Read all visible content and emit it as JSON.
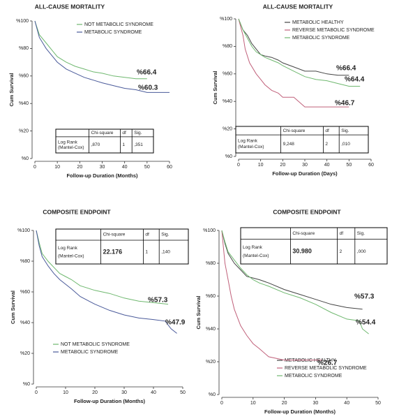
{
  "chart_data": [
    {
      "type": "line",
      "title": "ALL-CAUSE MORTALITY",
      "x_label": "Follow-up Duration (Months)",
      "y_label": "Cum Survival",
      "xlim": [
        0,
        60
      ],
      "xticks": [
        0,
        10,
        20,
        30,
        40,
        50,
        60
      ],
      "ylim": [
        0,
        100
      ],
      "yticks": [
        {
          "value": 0,
          "label": "%0"
        },
        {
          "value": 20,
          "label": "%20"
        },
        {
          "value": 40,
          "label": "%40"
        },
        {
          "value": 60,
          "label": "%60"
        },
        {
          "value": 80,
          "label": "%80"
        },
        {
          "value": 100,
          "label": "%100"
        }
      ],
      "series": [
        {
          "name": "NOT METABOLIC SYNDROME",
          "color": "#6fb86f",
          "x": [
            0,
            2,
            5,
            8,
            10,
            14,
            18,
            22,
            26,
            30,
            35,
            40,
            45,
            50
          ],
          "values": [
            100,
            90,
            84,
            78,
            74,
            70,
            67,
            65,
            63,
            62,
            60,
            59,
            58,
            58
          ]
        },
        {
          "name": "METABOLIC SYNDROME",
          "color": "#4a5a9a",
          "x": [
            0,
            2,
            5,
            8,
            10,
            14,
            18,
            22,
            26,
            30,
            35,
            40,
            45,
            50,
            55,
            60
          ],
          "values": [
            100,
            88,
            80,
            74,
            70,
            65,
            62,
            59,
            57,
            55,
            53,
            51,
            50,
            48,
            48,
            48
          ]
        }
      ],
      "annotations": [
        "%66.4",
        "%60.3"
      ],
      "table": {
        "header": [
          "Chi-square",
          "df",
          "Sig."
        ],
        "row_label": [
          "Log Rank",
          "(Mantel-Cox)"
        ],
        "row": [
          ",870",
          "1",
          ",351"
        ]
      }
    },
    {
      "type": "line",
      "title": "ALL-CAUSE MORTALITY",
      "x_label": "Follow-up Duration (Days)",
      "y_label": "Cum Survival",
      "xlim": [
        0,
        60
      ],
      "xticks": [
        0,
        10,
        20,
        30,
        40,
        50,
        60
      ],
      "ylim": [
        0,
        100
      ],
      "yticks": [
        {
          "value": 0,
          "label": "%0"
        },
        {
          "value": 20,
          "label": "%20"
        },
        {
          "value": 40,
          "label": "%40"
        },
        {
          "value": 60,
          "label": "%60"
        },
        {
          "value": 80,
          "label": "%80"
        },
        {
          "value": 100,
          "label": "%100"
        }
      ],
      "series": [
        {
          "name": "METABOLIC HEALTHY",
          "color": "#444444",
          "x": [
            0,
            2,
            4,
            6,
            8,
            10,
            12,
            15,
            18,
            20,
            25,
            30,
            35,
            40,
            45,
            50
          ],
          "values": [
            100,
            92,
            88,
            82,
            78,
            74,
            73,
            72,
            70,
            68,
            65,
            62,
            62,
            60,
            59,
            59
          ]
        },
        {
          "name": "REVERSE METABOLIC SYNDROME",
          "color": "#c0607a",
          "x": [
            0,
            2,
            3,
            5,
            8,
            10,
            12,
            15,
            18,
            20,
            25,
            30,
            35,
            40,
            45,
            50
          ],
          "values": [
            100,
            88,
            78,
            68,
            60,
            56,
            52,
            48,
            46,
            43,
            43,
            36,
            36,
            36,
            36,
            36
          ]
        },
        {
          "name": "METABOLIC SYNDROME",
          "color": "#6fb86f",
          "x": [
            0,
            2,
            4,
            6,
            8,
            10,
            12,
            15,
            18,
            20,
            25,
            30,
            35,
            40,
            45,
            50,
            55
          ],
          "values": [
            100,
            92,
            86,
            80,
            76,
            74,
            72,
            70,
            68,
            66,
            62,
            58,
            56,
            55,
            53,
            51,
            51
          ]
        }
      ],
      "annotations": [
        "%66.4",
        "%64.4",
        "%46.7"
      ],
      "table": {
        "header": [
          "Chi-square",
          "df",
          "Sig."
        ],
        "row_label": [
          "Log Rank",
          "(Mantel-Cox)"
        ],
        "row": [
          "9,248",
          "2",
          ",010"
        ]
      }
    },
    {
      "type": "line",
      "title": "COMPOSITE ENDPOINT",
      "x_label": "Follow-up Duration (Months)",
      "y_label": "Cum Survival",
      "xlim": [
        0,
        50
      ],
      "xticks": [
        0,
        10,
        20,
        30,
        40,
        50
      ],
      "ylim": [
        0,
        100
      ],
      "yticks": [
        {
          "value": 0,
          "label": "%0"
        },
        {
          "value": 20,
          "label": "%20"
        },
        {
          "value": 40,
          "label": "%40"
        },
        {
          "value": 60,
          "label": "%60"
        },
        {
          "value": 80,
          "label": "%80"
        },
        {
          "value": 100,
          "label": "%100"
        }
      ],
      "series": [
        {
          "name": "NOT METABOLIC SYNDROME",
          "color": "#6fb86f",
          "x": [
            0,
            1,
            2,
            4,
            6,
            8,
            10,
            12,
            15,
            20,
            25,
            30,
            35,
            40,
            45
          ],
          "values": [
            100,
            92,
            85,
            80,
            76,
            72,
            70,
            68,
            64,
            61,
            59,
            56,
            54,
            53,
            52
          ]
        },
        {
          "name": "METABOLIC SYNDROME",
          "color": "#4a5a9a",
          "x": [
            0,
            1,
            2,
            4,
            6,
            8,
            10,
            12,
            15,
            20,
            25,
            30,
            35,
            40,
            44,
            46,
            48
          ],
          "values": [
            100,
            90,
            83,
            77,
            72,
            68,
            65,
            62,
            57,
            52,
            48,
            45,
            43,
            42,
            41,
            36,
            33
          ]
        }
      ],
      "annotations": [
        "%57.3",
        "%47.9"
      ],
      "table": {
        "header": [
          "Chi-square",
          "df",
          "Sig."
        ],
        "row_label": [
          "Log Rank",
          "(Mantel-Cox)"
        ],
        "row": [
          "22.176",
          "1",
          ",140"
        ]
      }
    },
    {
      "type": "line",
      "title": "COMPOSITE ENDPOINT",
      "x_label": "Follow-up Duration (Months)",
      "y_label": "Cum Survival",
      "xlim": [
        0,
        50
      ],
      "xticks": [
        0,
        10,
        20,
        30,
        40,
        50
      ],
      "ylim": [
        0,
        100
      ],
      "yticks": [
        {
          "value": 0,
          "label": "%0"
        },
        {
          "value": 20,
          "label": "%20"
        },
        {
          "value": 40,
          "label": "%40"
        },
        {
          "value": 60,
          "label": "%60"
        },
        {
          "value": 80,
          "label": "%80"
        },
        {
          "value": 100,
          "label": "%100"
        }
      ],
      "series": [
        {
          "name": "METABOLIC HEALTHY",
          "color": "#444444",
          "x": [
            0,
            1,
            2,
            4,
            6,
            8,
            10,
            12,
            15,
            20,
            25,
            30,
            35,
            40,
            45
          ],
          "values": [
            100,
            92,
            86,
            80,
            76,
            72,
            71,
            70,
            68,
            64,
            61,
            58,
            55,
            53,
            52
          ]
        },
        {
          "name": "REVERSE METABOLIC SYNDROME",
          "color": "#c0607a",
          "x": [
            0,
            0.5,
            1,
            2,
            3,
            4,
            6,
            8,
            10,
            12,
            15,
            20,
            25,
            30,
            32
          ],
          "values": [
            100,
            90,
            80,
            70,
            60,
            52,
            42,
            36,
            31,
            28,
            23,
            21,
            21,
            21,
            21
          ]
        },
        {
          "name": "METABOLIC SYNDROME",
          "color": "#6fb86f",
          "x": [
            0,
            1,
            2,
            4,
            6,
            8,
            10,
            12,
            15,
            20,
            25,
            30,
            35,
            40,
            44,
            45,
            47
          ],
          "values": [
            100,
            93,
            87,
            82,
            77,
            73,
            70,
            68,
            66,
            62,
            59,
            55,
            50,
            46,
            45,
            40,
            37
          ]
        }
      ],
      "annotations": [
        "%57.3",
        "%54.4",
        "%26.7"
      ],
      "table": {
        "header": [
          "Chi-square",
          "df",
          "Sig."
        ],
        "row_label": [
          "Log Rank",
          "(Mantel-Cox)"
        ],
        "row": [
          "30.980",
          "2",
          ",000"
        ]
      }
    }
  ]
}
